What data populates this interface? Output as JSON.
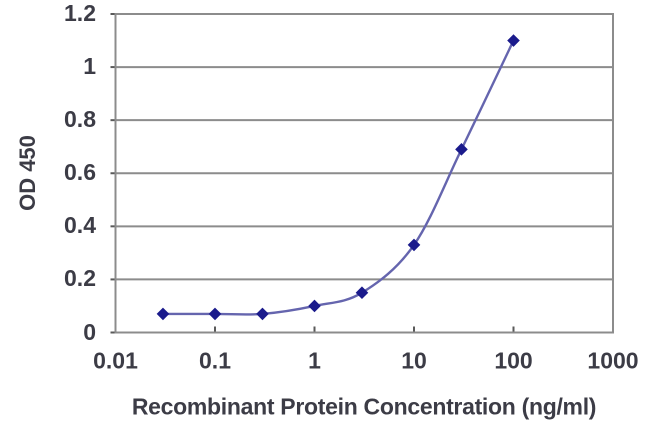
{
  "chart_data": {
    "type": "line",
    "title": "",
    "xlabel": "Recombinant Protein Concentration (ng/ml)",
    "ylabel": "OD 450",
    "x_scale": "log",
    "xlim": [
      0.01,
      1000
    ],
    "ylim": [
      0,
      1.2
    ],
    "x": [
      0.03,
      0.1,
      0.3,
      1,
      3,
      10,
      30,
      100
    ],
    "series": [
      {
        "name": "OD 450",
        "values": [
          0.07,
          0.07,
          0.07,
          0.1,
          0.15,
          0.33,
          0.69,
          1.1
        ]
      }
    ],
    "xtick_values": [
      0.01,
      0.1,
      1,
      10,
      100,
      1000
    ],
    "xtick_labels": [
      "0.01",
      "0.1",
      "1",
      "10",
      "100",
      "1000"
    ],
    "ytick_values": [
      0,
      0.2,
      0.4,
      0.6,
      0.8,
      1,
      1.2
    ],
    "ytick_labels": [
      "0",
      "0.2",
      "0.4",
      "0.6",
      "0.8",
      "1",
      "1.2"
    ],
    "grid": "horizontal",
    "legend": "none",
    "marker_shape": "diamond",
    "line_style": "smooth",
    "colors": {
      "line": "#6565ae",
      "marker": "#1b1b8c",
      "grid": "#8c8c8c",
      "border": "#8c8c8c",
      "tick": "#5a5a5a",
      "axis_text": "#3c3c46",
      "background": "#ffffff"
    }
  }
}
